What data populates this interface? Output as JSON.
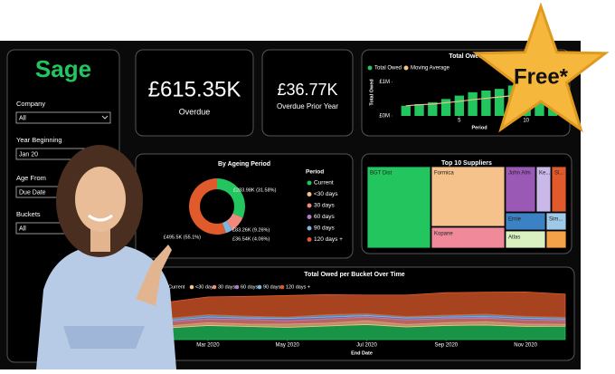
{
  "logo": "Sage",
  "badge": "Free*",
  "filters": [
    {
      "label": "Company",
      "value": "All"
    },
    {
      "label": "Year Beginning",
      "value": "Jan 20"
    },
    {
      "label": "Age From",
      "value": "Due Date"
    },
    {
      "label": "Buckets",
      "value": "All"
    }
  ],
  "kpis": [
    {
      "value": "£615.35K",
      "label": "Overdue"
    },
    {
      "value": "£36.77K",
      "label": "Overdue Prior Year"
    }
  ],
  "total_owed": {
    "type": "bar",
    "title": "Total Owed",
    "x_label": "Period",
    "y_label": "Total Owed",
    "x": [
      1,
      2,
      3,
      4,
      5,
      6,
      7,
      8,
      9,
      10,
      11,
      12
    ],
    "series": [
      {
        "name": "Total Owed",
        "color": "#22c55e",
        "values": [
          0.3,
          0.35,
          0.4,
          0.5,
          0.6,
          0.7,
          0.75,
          0.8,
          0.9,
          1.0,
          1.1,
          1.2
        ]
      },
      {
        "name": "Moving Average",
        "color": "#f4c28a",
        "values": [
          0.3,
          0.33,
          0.35,
          0.39,
          0.43,
          0.48,
          0.52,
          0.56,
          0.6,
          0.64,
          0.68,
          0.72
        ]
      }
    ],
    "xlim": [
      0,
      13
    ],
    "xticks": [
      5,
      10
    ],
    "ylim": [
      0,
      1.5
    ],
    "yticks": [
      {
        "value": 0,
        "label": "£0M"
      },
      {
        "value": 1,
        "label": "£1M"
      }
    ]
  },
  "ageing": {
    "type": "pie",
    "title": "By Ageing Period",
    "legend_title": "Period",
    "categories": [
      "Current",
      "<30 days",
      "30 days",
      "60 days",
      "90 days",
      "120 days +"
    ],
    "colors": [
      "#22c55e",
      "#f4c28a",
      "#f08a7e",
      "#b07cc6",
      "#7ab8e0",
      "#e05a2b"
    ],
    "values": [
      283.98,
      0,
      83.26,
      0,
      36.54,
      495.5
    ],
    "value_labels": [
      "£283.98K (31.58%)",
      null,
      "£83.26K (9.26%)",
      null,
      "£36.54K (4.06%)",
      "£495.5K (55.1%)"
    ]
  },
  "suppliers": {
    "title": "Top 10 Suppliers",
    "tiles": [
      {
        "label": "BGT Dist",
        "color": "#22c55e"
      },
      {
        "label": "Formica",
        "color": "#f4c28a"
      },
      {
        "label": "Kopane",
        "color": "#f08a9a"
      },
      {
        "label": "John Alm",
        "color": "#9b59b6"
      },
      {
        "label": "Ke...",
        "color": "#c9b8e8"
      },
      {
        "label": "Sl...",
        "color": "#e05a2b"
      },
      {
        "label": "Ernie",
        "color": "#3b82c4"
      },
      {
        "label": "Sim...",
        "color": "#9ec9e8"
      },
      {
        "label": "Atlas",
        "color": "#d9f0c0"
      },
      {
        "label": null,
        "color": "#f4a24a"
      }
    ]
  },
  "buckets": {
    "type": "area",
    "title": "Total Owed per Bucket Over Time",
    "x_label": "End Date",
    "x": [
      "Feb 2020",
      "Mar 2020",
      "Apr 2020",
      "May 2020",
      "Jun 2020",
      "Jul 2020",
      "Aug 2020",
      "Sep 2020",
      "Oct 2020",
      "Nov 2020",
      "Dec 2020"
    ],
    "xticks": [
      "Mar 2020",
      "May 2020",
      "Jul 2020",
      "Sep 2020",
      "Nov 2020"
    ],
    "ylim": [
      0,
      1100
    ],
    "series": [
      {
        "name": "Current",
        "color": "#22c55e",
        "values": [
          250,
          300,
          280,
          260,
          290,
          320,
          270,
          300,
          310,
          280,
          284
        ]
      },
      {
        "name": "<30 days",
        "color": "#f4c28a",
        "values": [
          40,
          60,
          50,
          70,
          60,
          80,
          50,
          60,
          70,
          50,
          40
        ]
      },
      {
        "name": "30 days",
        "color": "#f08a7e",
        "values": [
          90,
          80,
          100,
          70,
          90,
          80,
          100,
          90,
          80,
          85,
          83
        ]
      },
      {
        "name": "60 days",
        "color": "#b07cc6",
        "values": [
          30,
          40,
          30,
          50,
          40,
          30,
          40,
          30,
          30,
          40,
          30
        ]
      },
      {
        "name": "90 days",
        "color": "#7ab8e0",
        "values": [
          40,
          50,
          40,
          30,
          50,
          40,
          30,
          40,
          50,
          40,
          37
        ]
      },
      {
        "name": "120 days +",
        "color": "#e05a2b",
        "values": [
          350,
          380,
          420,
          460,
          430,
          400,
          460,
          480,
          470,
          520,
          496
        ]
      }
    ]
  }
}
